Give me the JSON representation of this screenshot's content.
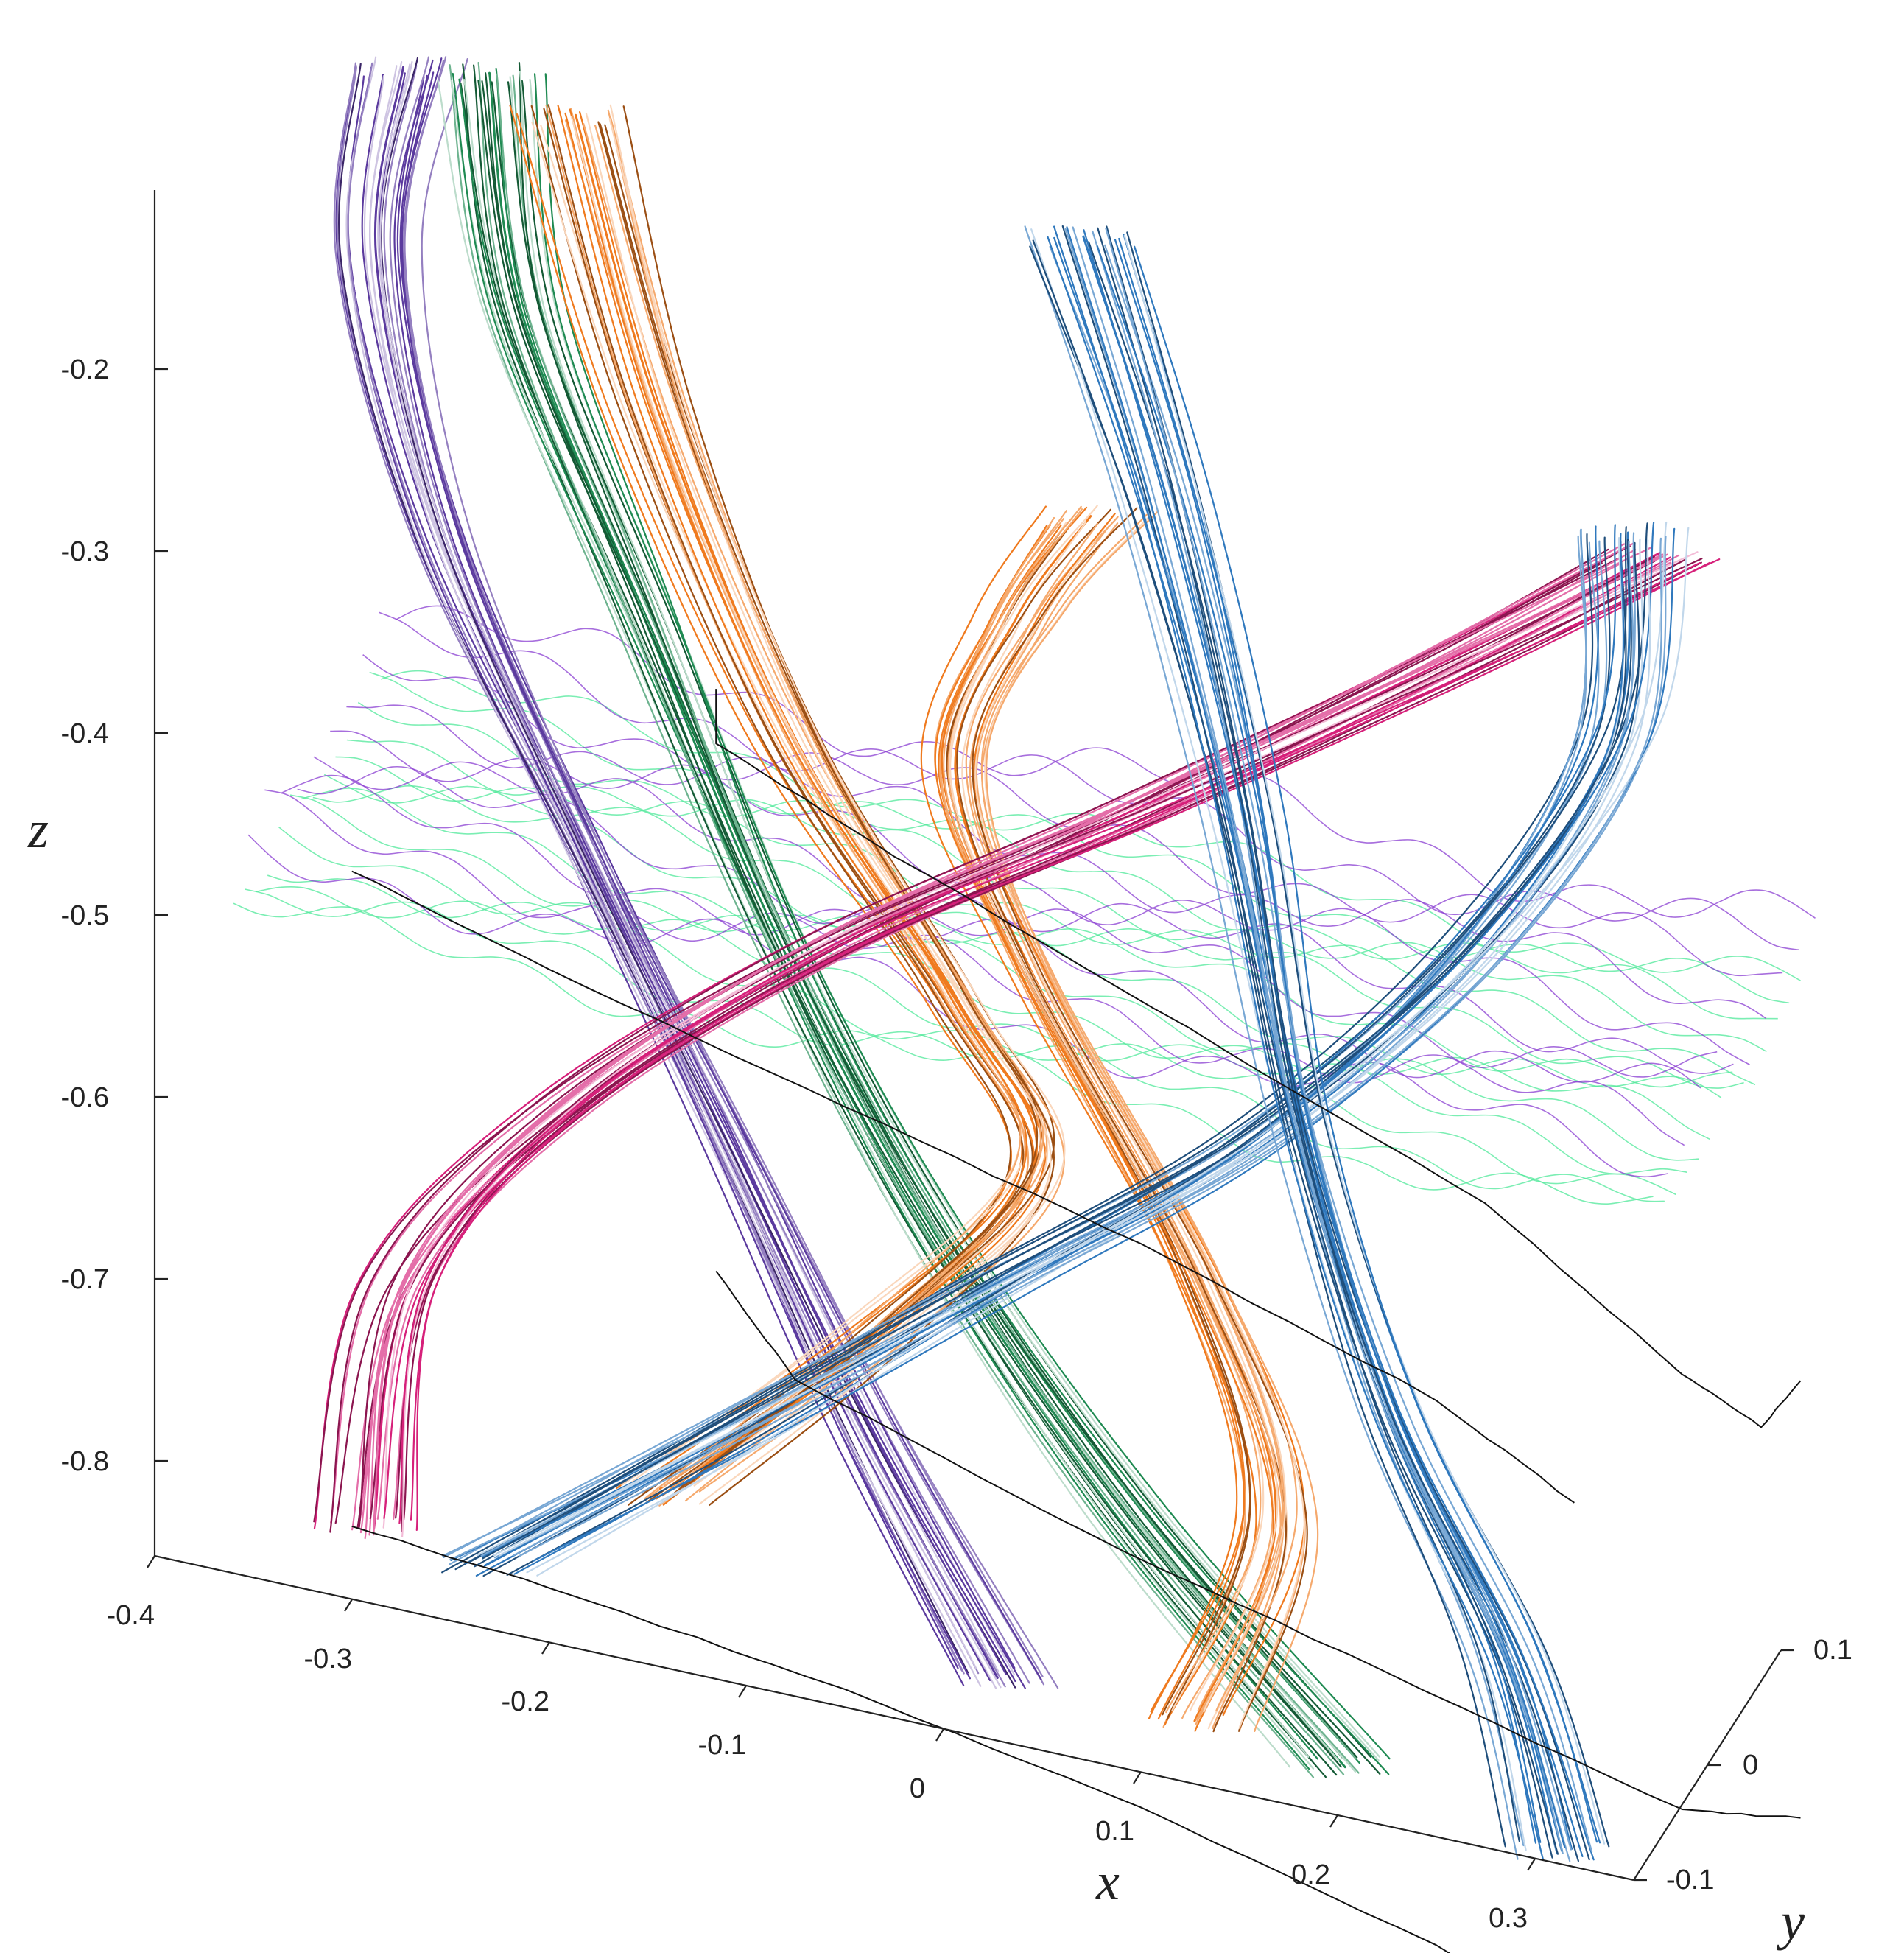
{
  "chart_data": {
    "type": "line",
    "title": "",
    "xlabel": "x",
    "ylabel": "y",
    "zlabel": "z",
    "xlim": [
      -0.4,
      0.35
    ],
    "ylim": [
      -0.1,
      0.1
    ],
    "zlim": [
      -0.85,
      -0.1
    ],
    "grid": false,
    "legend": "none",
    "x_ticks": [
      "-0.4",
      "-0.3",
      "-0.2",
      "-0.1",
      "0",
      "0.1",
      "0.2",
      "0.3"
    ],
    "y_ticks": [
      "-0.1",
      "0",
      "0.1"
    ],
    "z_ticks": [
      "-0.2",
      "-0.3",
      "-0.4",
      "-0.5",
      "-0.6",
      "-0.7",
      "-0.8"
    ],
    "colors": {
      "purple": "#5b3a9e",
      "green": "#1f8a52",
      "orange": "#ef7a1e",
      "magenta": "#d6207a",
      "blue": "#2f78bd",
      "sheet_green": "#4fe89a",
      "sheet_purple": "#8a3dd1",
      "black": "#111111"
    },
    "series": [
      {
        "color": "purple",
        "points": [
          [
            -0.33,
            0.05,
            -0.1
          ],
          [
            -0.34,
            0.04,
            -0.2
          ],
          [
            -0.3,
            0.02,
            -0.33
          ],
          [
            -0.22,
            0.0,
            -0.47
          ],
          [
            -0.14,
            -0.02,
            -0.6
          ],
          [
            -0.06,
            -0.05,
            -0.72
          ],
          [
            0.02,
            -0.08,
            -0.82
          ]
        ]
      },
      {
        "color": "green",
        "points": [
          [
            -0.29,
            0.06,
            -0.1
          ],
          [
            -0.27,
            0.05,
            -0.22
          ],
          [
            -0.2,
            0.03,
            -0.36
          ],
          [
            -0.12,
            0.0,
            -0.5
          ],
          [
            -0.03,
            -0.03,
            -0.62
          ],
          [
            0.08,
            -0.06,
            -0.73
          ],
          [
            0.2,
            -0.09,
            -0.82
          ]
        ]
      },
      {
        "color": "orange",
        "points": [
          [
            -0.25,
            0.07,
            -0.12
          ],
          [
            -0.2,
            0.05,
            -0.26
          ],
          [
            -0.12,
            0.02,
            -0.4
          ],
          [
            -0.03,
            0.0,
            -0.51
          ],
          [
            0.02,
            -0.03,
            -0.57
          ],
          [
            -0.05,
            -0.06,
            -0.66
          ],
          [
            -0.15,
            -0.08,
            -0.76
          ]
        ]
      },
      {
        "color": "orange",
        "points": [
          [
            0.0,
            0.1,
            -0.3
          ],
          [
            -0.03,
            0.08,
            -0.35
          ],
          [
            -0.05,
            0.05,
            -0.42
          ],
          [
            0.0,
            0.02,
            -0.5
          ],
          [
            0.1,
            -0.02,
            -0.62
          ],
          [
            0.15,
            -0.05,
            -0.72
          ],
          [
            0.12,
            -0.08,
            -0.82
          ]
        ]
      },
      {
        "color": "magenta",
        "points": [
          [
            0.3,
            0.07,
            -0.23
          ],
          [
            0.2,
            0.05,
            -0.3
          ],
          [
            0.05,
            0.02,
            -0.4
          ],
          [
            -0.1,
            0.0,
            -0.5
          ],
          [
            -0.22,
            -0.03,
            -0.6
          ],
          [
            -0.29,
            -0.05,
            -0.7
          ],
          [
            -0.3,
            -0.07,
            -0.82
          ]
        ]
      },
      {
        "color": "blue",
        "points": [
          [
            0.28,
            0.08,
            -0.23
          ],
          [
            0.28,
            0.06,
            -0.33
          ],
          [
            0.22,
            0.03,
            -0.44
          ],
          [
            0.12,
            0.0,
            -0.55
          ],
          [
            0.0,
            -0.03,
            -0.64
          ],
          [
            -0.12,
            -0.06,
            -0.73
          ],
          [
            -0.24,
            -0.08,
            -0.82
          ]
        ]
      },
      {
        "color": "blue",
        "points": [
          [
            0.0,
            0.09,
            -0.14
          ],
          [
            0.05,
            0.07,
            -0.26
          ],
          [
            0.1,
            0.04,
            -0.4
          ],
          [
            0.14,
            0.01,
            -0.54
          ],
          [
            0.2,
            -0.03,
            -0.66
          ],
          [
            0.27,
            -0.06,
            -0.76
          ],
          [
            0.31,
            -0.09,
            -0.84
          ]
        ]
      }
    ]
  }
}
